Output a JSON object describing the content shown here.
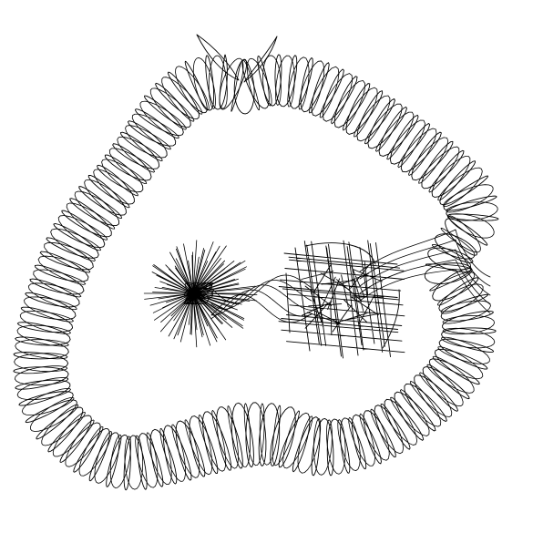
{
  "canvas": {
    "background": "#ffffff",
    "stroke_color": "#000000"
  },
  "figures": [
    {
      "name": "outer-looping-band",
      "kind": "looped-band"
    },
    {
      "name": "left-star-burst",
      "kind": "star-burst"
    },
    {
      "name": "right-line-tangle",
      "kind": "line-tangle"
    },
    {
      "name": "connecting-wave-strands",
      "kind": "strands"
    }
  ]
}
